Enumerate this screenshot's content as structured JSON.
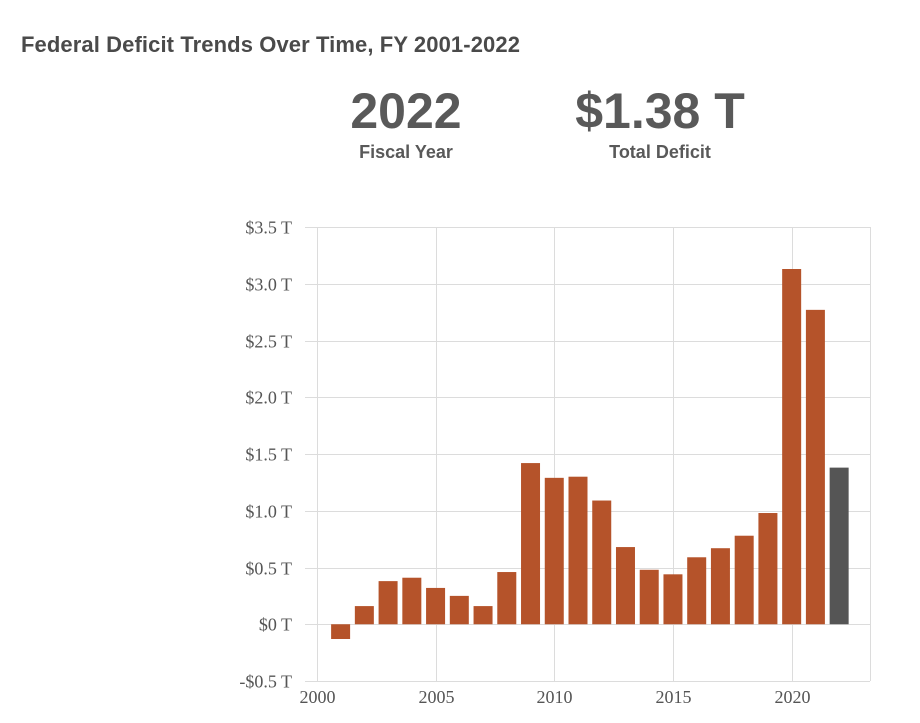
{
  "title": "Federal Deficit Trends Over Time, FY 2001-2022",
  "stats": {
    "year": {
      "value": "2022",
      "label": "Fiscal Year"
    },
    "deficit": {
      "value": "$1.38 T",
      "label": "Total Deficit"
    }
  },
  "colors": {
    "bar": "#b5532a",
    "highlight": "#555555",
    "grid": "#dcdcdc",
    "text": "#555555"
  },
  "chart_data": {
    "type": "bar",
    "title": "",
    "xlabel": "",
    "ylabel": "",
    "x": [
      2001,
      2002,
      2003,
      2004,
      2005,
      2006,
      2007,
      2008,
      2009,
      2010,
      2011,
      2012,
      2013,
      2014,
      2015,
      2016,
      2017,
      2018,
      2019,
      2020,
      2021,
      2022
    ],
    "values": [
      -0.13,
      0.16,
      0.38,
      0.41,
      0.32,
      0.25,
      0.16,
      0.46,
      1.42,
      1.29,
      1.3,
      1.09,
      0.68,
      0.48,
      0.44,
      0.59,
      0.67,
      0.78,
      0.98,
      3.13,
      2.77,
      1.38
    ],
    "highlight": 2022,
    "xlim": [
      1999.5,
      2023.3
    ],
    "ylim": [
      -0.5,
      3.5
    ],
    "x_ticks": [
      2000,
      2005,
      2010,
      2015,
      2020
    ],
    "x_tick_labels": [
      "2000",
      "2005",
      "2010",
      "2015",
      "2020"
    ],
    "y_ticks": [
      -0.5,
      0,
      0.5,
      1.0,
      1.5,
      2.0,
      2.5,
      3.0,
      3.5
    ],
    "y_tick_labels": [
      "-$0.5 T",
      "$0 T",
      "$0.5 T",
      "$1.0 T",
      "$1.5 T",
      "$2.0 T",
      "$2.5 T",
      "$3.0 T",
      "$3.5 T"
    ],
    "grid": true,
    "legend": "none"
  }
}
